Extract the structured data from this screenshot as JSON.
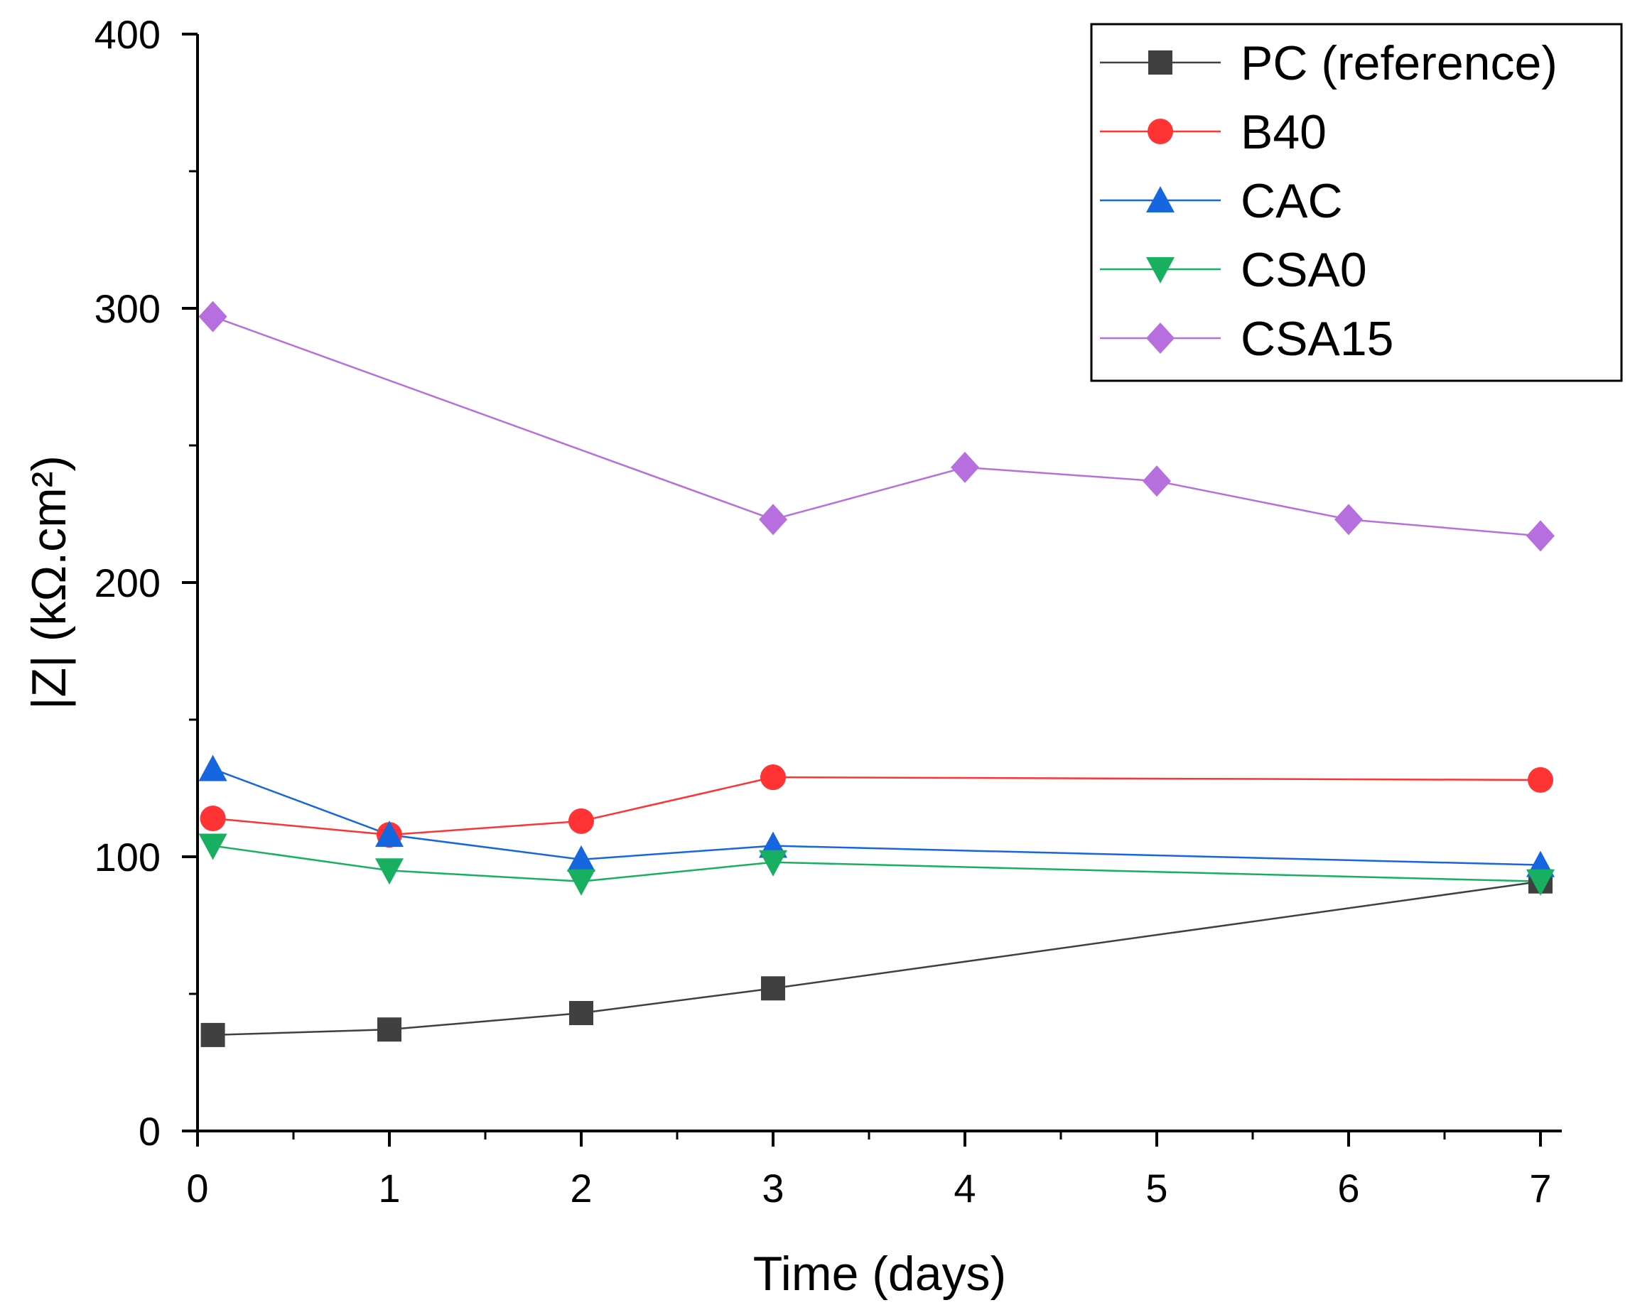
{
  "chart_data": {
    "type": "line",
    "title": "",
    "xlabel": "Time (days)",
    "ylabel": "|Z| (kΩ.cm²)",
    "xlim": [
      0,
      7.1
    ],
    "ylim": [
      0,
      400
    ],
    "xticks": [
      0,
      1,
      2,
      3,
      4,
      5,
      6,
      7
    ],
    "xtick_labels": [
      "0",
      "1",
      "2",
      "3",
      "4",
      "5",
      "6",
      "7"
    ],
    "yticks": [
      0,
      100,
      200,
      300,
      400
    ],
    "ytick_labels": [
      "0",
      "100",
      "200",
      "300",
      "400"
    ],
    "grid": false,
    "legend_position": "top-right",
    "series": [
      {
        "name": "PC (reference)",
        "color": "#404040",
        "marker": "square",
        "x": [
          0.08,
          1,
          2,
          3,
          7
        ],
        "y": [
          35,
          37,
          43,
          52,
          91
        ]
      },
      {
        "name": "B40",
        "color": "#ff3333",
        "marker": "circle",
        "x": [
          0.08,
          1,
          2,
          3,
          7
        ],
        "y": [
          114,
          108,
          113,
          129,
          128
        ]
      },
      {
        "name": "CAC",
        "color": "#1666e0",
        "marker": "triangle-up",
        "x": [
          0.08,
          1,
          2,
          3,
          7
        ],
        "y": [
          132,
          108,
          99,
          104,
          97
        ]
      },
      {
        "name": "CSA0",
        "color": "#18b060",
        "marker": "triangle-down",
        "x": [
          0.08,
          1,
          2,
          3,
          7
        ],
        "y": [
          104,
          95,
          91,
          98,
          91
        ]
      },
      {
        "name": "CSA15",
        "color": "#b76fe0",
        "marker": "diamond",
        "x": [
          0.08,
          3,
          4,
          5,
          6,
          7
        ],
        "y": [
          297,
          223,
          242,
          237,
          223,
          217
        ]
      }
    ]
  }
}
